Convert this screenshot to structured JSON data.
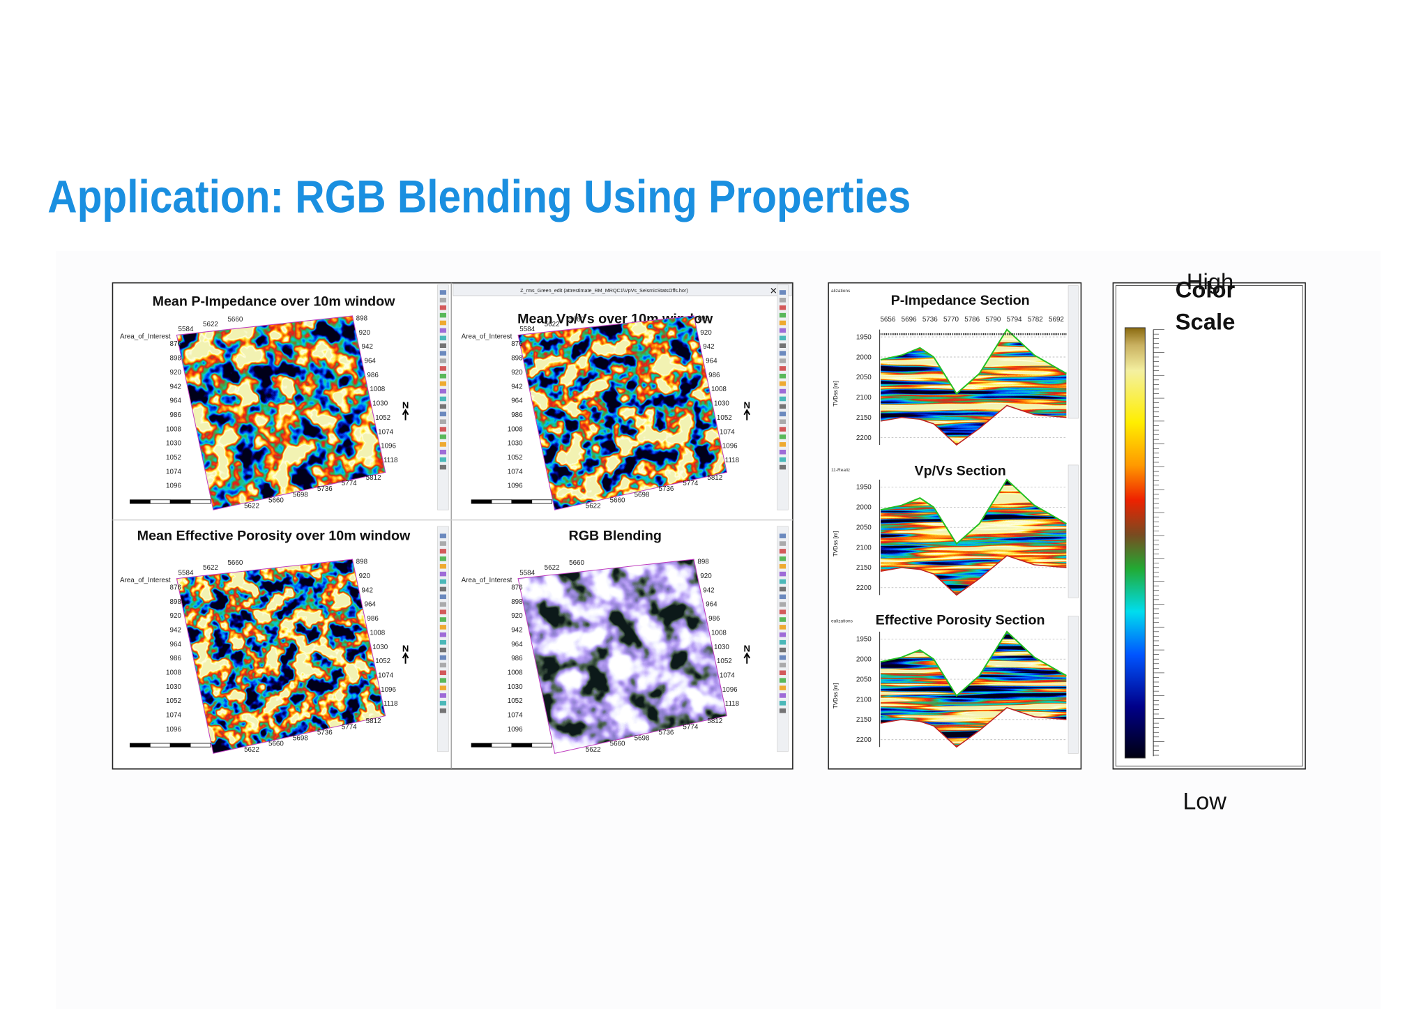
{
  "title": "Application: RGB Blending Using Properties",
  "map_window_title": "Z_rms_Green_edit (attrestimate_RM_MRQC1\\VpVs_SeismicStatsOffs.hor)",
  "maps": [
    {
      "title": "Mean P-Impedance over 10m window"
    },
    {
      "title": "Mean Vp/Vs over 10m window"
    },
    {
      "title": "Mean Effective Porosity over 10m window"
    },
    {
      "title": "RGB Blending"
    }
  ],
  "map_labels": {
    "area": "Area_of_Interest",
    "north": "N",
    "left": [
      876,
      898,
      920,
      942,
      964,
      986,
      1008,
      1030,
      1052,
      1074,
      1096
    ],
    "right": [
      898,
      920,
      942,
      964,
      986,
      1008,
      1030,
      1052,
      1074,
      1096,
      1118
    ],
    "top": [
      5584,
      5622,
      5660
    ],
    "bottom": [
      5622,
      5660,
      5698,
      5736,
      5774,
      5812
    ]
  },
  "sections": [
    {
      "title": "P-Impedance Section",
      "tab": "alizations"
    },
    {
      "title": "Vp/Vs Section",
      "tab": "11-Realiz"
    },
    {
      "title": "Effective Porosity Section",
      "tab": "ealizations"
    }
  ],
  "section_labels": {
    "axis": "TVDss [m]",
    "depth": [
      1950,
      2000,
      2050,
      2100,
      2150,
      2200
    ],
    "traces": [
      5656,
      5696,
      5736,
      5770,
      5786,
      5790,
      5794,
      5782,
      5692
    ]
  },
  "color_scale": {
    "high": "High",
    "title": [
      "Color",
      "Scale"
    ],
    "low": "Low"
  }
}
